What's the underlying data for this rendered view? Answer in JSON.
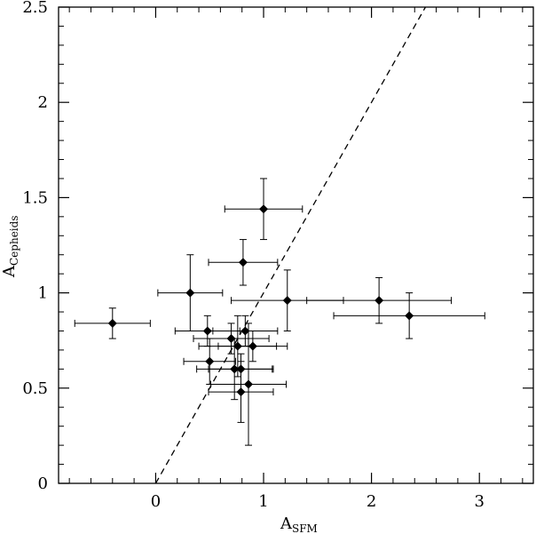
{
  "chart_data": {
    "type": "scatter",
    "xlabel": "A",
    "xlabel_sub": "SFM",
    "ylabel": "A",
    "ylabel_sub": "Cepheids",
    "xlim": [
      -0.9,
      3.5
    ],
    "ylim": [
      0,
      2.5
    ],
    "x_ticks": [
      "0",
      "1",
      "2",
      "3"
    ],
    "x_tick_values": [
      0,
      1,
      2,
      3
    ],
    "y_ticks": [
      "0",
      "0.5",
      "1",
      "1.5",
      "2",
      "2.5"
    ],
    "y_tick_values": [
      0,
      0.5,
      1,
      1.5,
      2,
      2.5
    ],
    "grid": false,
    "reference_line": {
      "style": "dashed",
      "x": [
        0,
        2.5
      ],
      "y": [
        0,
        2.5
      ]
    },
    "points": [
      {
        "x": -0.4,
        "y": 0.84,
        "xerr": 0.35,
        "yerr": 0.08
      },
      {
        "x": 0.32,
        "y": 1.0,
        "xerr": 0.3,
        "yerr": 0.2
      },
      {
        "x": 0.81,
        "y": 1.16,
        "xerr": 0.32,
        "yerr": 0.12
      },
      {
        "x": 1.0,
        "y": 1.44,
        "xerr": 0.36,
        "yerr": 0.16
      },
      {
        "x": 1.22,
        "y": 0.96,
        "xerr": 0.52,
        "yerr": 0.16
      },
      {
        "x": 2.07,
        "y": 0.96,
        "xerr": 0.67,
        "yerr": 0.12
      },
      {
        "x": 2.35,
        "y": 0.88,
        "xerr": 0.7,
        "yerr": 0.12
      },
      {
        "x": 0.48,
        "y": 0.8,
        "xerr": 0.3,
        "yerr": 0.08
      },
      {
        "x": 0.7,
        "y": 0.76,
        "xerr": 0.35,
        "yerr": 0.08
      },
      {
        "x": 0.76,
        "y": 0.72,
        "xerr": 0.36,
        "yerr": 0.16
      },
      {
        "x": 0.83,
        "y": 0.8,
        "xerr": 0.3,
        "yerr": 0.08
      },
      {
        "x": 0.9,
        "y": 0.72,
        "xerr": 0.32,
        "yerr": 0.08
      },
      {
        "x": 0.5,
        "y": 0.64,
        "xerr": 0.24,
        "yerr": 0.12
      },
      {
        "x": 0.73,
        "y": 0.6,
        "xerr": 0.35,
        "yerr": 0.16
      },
      {
        "x": 0.79,
        "y": 0.6,
        "xerr": 0.3,
        "yerr": 0.08
      },
      {
        "x": 0.86,
        "y": 0.52,
        "xerr": 0.35,
        "yerr": 0.32
      },
      {
        "x": 0.79,
        "y": 0.48,
        "xerr": 0.3,
        "yerr": 0.16
      }
    ]
  }
}
